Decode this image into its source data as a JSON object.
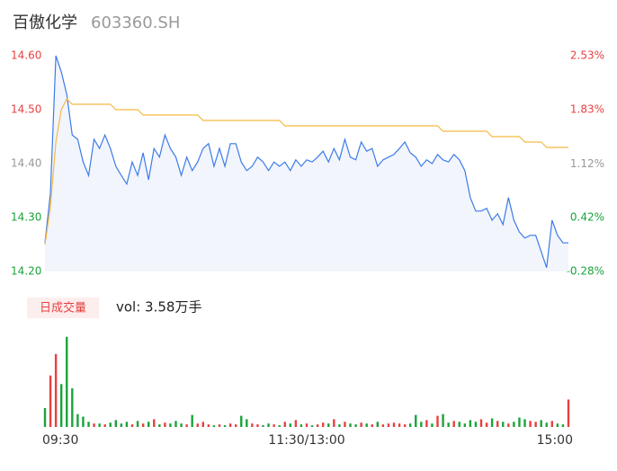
{
  "chart_data": {
    "type": "intraday",
    "title": "百傲化学",
    "subtitle": "603360.SH",
    "volume_badge": "日成交量",
    "volume_label": "vol: 3.58万手",
    "categories": [
      "09:30",
      null,
      null,
      null,
      null,
      null,
      null,
      null,
      null,
      null,
      null,
      null,
      null,
      null,
      null,
      null,
      null,
      null,
      null,
      null,
      null,
      null,
      null,
      null,
      null,
      null,
      null,
      null,
      null,
      null,
      null,
      null,
      null,
      null,
      null,
      null,
      null,
      null,
      null,
      null,
      null,
      null,
      null,
      null,
      null,
      null,
      null,
      null,
      "11:30/13:00",
      null,
      null,
      null,
      null,
      null,
      null,
      null,
      null,
      null,
      null,
      null,
      null,
      null,
      null,
      null,
      null,
      null,
      null,
      null,
      null,
      null,
      null,
      null,
      null,
      null,
      null,
      null,
      null,
      null,
      null,
      null,
      null,
      null,
      null,
      null,
      null,
      null,
      null,
      null,
      null,
      null,
      null,
      null,
      null,
      null,
      null,
      null,
      "15:00"
    ],
    "series": [
      {
        "color": "#3b7be8",
        "values": [
          14.253,
          14.345,
          14.6,
          14.57,
          14.528,
          14.453,
          14.445,
          14.403,
          14.378,
          14.445,
          14.428,
          14.453,
          14.428,
          14.395,
          14.378,
          14.362,
          14.403,
          14.378,
          14.42,
          14.37,
          14.428,
          14.412,
          14.453,
          14.428,
          14.412,
          14.378,
          14.412,
          14.387,
          14.403,
          14.428,
          14.437,
          14.395,
          14.428,
          14.395,
          14.437,
          14.437,
          14.403,
          14.387,
          14.395,
          14.412,
          14.403,
          14.387,
          14.403,
          14.395,
          14.403,
          14.387,
          14.407,
          14.395,
          14.407,
          14.403,
          14.412,
          14.423,
          14.403,
          14.428,
          14.407,
          14.445,
          14.412,
          14.407,
          14.44,
          14.423,
          14.428,
          14.395,
          14.407,
          14.412,
          14.417,
          14.428,
          14.44,
          14.42,
          14.412,
          14.395,
          14.407,
          14.4,
          14.417,
          14.407,
          14.403,
          14.417,
          14.407,
          14.387,
          14.337,
          14.312,
          14.312,
          14.317,
          14.295,
          14.307,
          14.287,
          14.337,
          14.295,
          14.273,
          14.262,
          14.267,
          14.267,
          14.237,
          14.207,
          14.295,
          14.267,
          14.253,
          14.253
        ]
      },
      {
        "color": "#f5b942",
        "values": [
          14.25,
          14.32,
          14.44,
          14.5,
          14.52,
          14.51,
          14.51,
          14.51,
          14.51,
          14.51,
          14.51,
          14.51,
          14.51,
          14.5,
          14.5,
          14.5,
          14.5,
          14.5,
          14.49,
          14.49,
          14.49,
          14.49,
          14.49,
          14.49,
          14.49,
          14.49,
          14.49,
          14.49,
          14.49,
          14.48,
          14.48,
          14.48,
          14.48,
          14.48,
          14.48,
          14.48,
          14.48,
          14.48,
          14.48,
          14.48,
          14.48,
          14.48,
          14.48,
          14.48,
          14.47,
          14.47,
          14.47,
          14.47,
          14.47,
          14.47,
          14.47,
          14.47,
          14.47,
          14.47,
          14.47,
          14.47,
          14.47,
          14.47,
          14.47,
          14.47,
          14.47,
          14.47,
          14.47,
          14.47,
          14.47,
          14.47,
          14.47,
          14.47,
          14.47,
          14.47,
          14.47,
          14.47,
          14.47,
          14.46,
          14.46,
          14.46,
          14.46,
          14.46,
          14.46,
          14.46,
          14.46,
          14.46,
          14.45,
          14.45,
          14.45,
          14.45,
          14.45,
          14.45,
          14.44,
          14.44,
          14.44,
          14.44,
          14.43,
          14.43,
          14.43,
          14.43,
          14.43
        ]
      }
    ],
    "volume": [
      220,
      600,
      850,
      500,
      1050,
      450,
      150,
      120,
      60,
      40,
      40,
      30,
      50,
      80,
      40,
      60,
      30,
      70,
      40,
      60,
      90,
      30,
      50,
      40,
      70,
      40,
      30,
      140,
      40,
      60,
      30,
      20,
      30,
      20,
      40,
      30,
      130,
      90,
      40,
      30,
      20,
      40,
      30,
      20,
      60,
      40,
      80,
      30,
      40,
      20,
      30,
      50,
      40,
      90,
      30,
      60,
      40,
      30,
      50,
      40,
      30,
      60,
      30,
      40,
      50,
      40,
      30,
      40,
      140,
      60,
      80,
      40,
      130,
      150,
      50,
      70,
      60,
      40,
      80,
      60,
      90,
      50,
      100,
      70,
      60,
      40,
      60,
      110,
      90,
      70,
      60,
      80,
      50,
      70,
      40,
      30,
      320
    ],
    "volume_ylim": [
      0,
      1100
    ],
    "up_color": "#e84040",
    "down_color": "#1aa33a",
    "area_color": "#f2f5fc",
    "ylim": [
      14.2,
      14.6
    ],
    "yticks": [
      {
        "value": 14.6,
        "label": "14.60"
      },
      {
        "value": 14.5,
        "label": "14.50"
      },
      {
        "value": 14.4,
        "label": "14.40"
      },
      {
        "value": 14.3,
        "label": "14.30"
      },
      {
        "value": 14.2,
        "label": "14.20"
      }
    ],
    "y2lim": [
      -0.28,
      2.53
    ],
    "y2ticks": [
      {
        "value": 2.53,
        "label": "2.53%"
      },
      {
        "value": 1.83,
        "label": "1.83%"
      },
      {
        "value": 1.12,
        "label": "1.12%"
      },
      {
        "value": 0.42,
        "label": "0.42%"
      },
      {
        "value": -0.28,
        "label": "-0.28%"
      }
    ],
    "tick_colors": [
      "#e84040",
      "#e84040",
      "#999999",
      "#1aa33a",
      "#1aa33a"
    ]
  }
}
